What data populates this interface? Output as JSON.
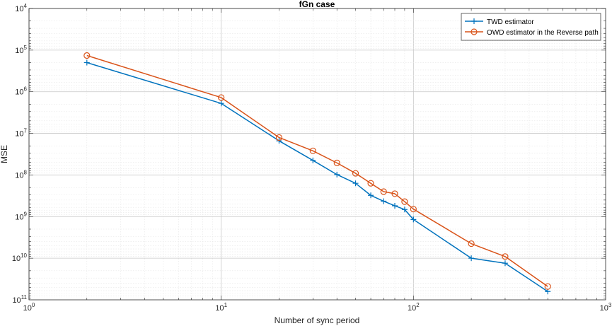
{
  "chart_data": {
    "type": "line",
    "title": "fGn case",
    "xlabel": "Number of sync period",
    "ylabel": "MSE",
    "x_scale": "log",
    "y_scale": "log",
    "xlim": [
      1,
      1000
    ],
    "ylim_exponents": [
      4,
      11
    ],
    "x_ticks": [
      {
        "base": "10",
        "exp": "0",
        "value": 1
      },
      {
        "base": "10",
        "exp": "1",
        "value": 10
      },
      {
        "base": "10",
        "exp": "2",
        "value": 100
      },
      {
        "base": "10",
        "exp": "3",
        "value": 1000
      }
    ],
    "y_ticks": [
      {
        "base": "10",
        "exp": "4",
        "value": 4
      },
      {
        "base": "10",
        "exp": "5",
        "value": 5
      },
      {
        "base": "10",
        "exp": "6",
        "value": 6
      },
      {
        "base": "10",
        "exp": "7",
        "value": 7
      },
      {
        "base": "10",
        "exp": "8",
        "value": 8
      },
      {
        "base": "10",
        "exp": "9",
        "value": 9
      },
      {
        "base": "10",
        "exp": "10",
        "value": 10
      },
      {
        "base": "10",
        "exp": "11",
        "value": 11
      }
    ],
    "grid": true,
    "minor_grid": true,
    "legend_position": "top-right",
    "x": [
      2,
      10,
      20,
      30,
      40,
      50,
      60,
      70,
      80,
      90,
      100,
      200,
      300,
      500
    ],
    "series": [
      {
        "name": "TWD estimator",
        "color": "#0072BD",
        "marker": "plus",
        "values": [
          5.3,
          6.28,
          7.18,
          7.65,
          7.99,
          8.2,
          8.49,
          8.63,
          8.74,
          8.83,
          9.07,
          10.0,
          10.12,
          10.8
        ]
      },
      {
        "name": "OWD estimator in the Reverse path",
        "color": "#D95319",
        "marker": "circle",
        "values": [
          5.13,
          6.14,
          7.1,
          7.42,
          7.71,
          7.96,
          8.2,
          8.4,
          8.45,
          8.64,
          8.82,
          9.65,
          9.96,
          10.68
        ]
      }
    ]
  }
}
